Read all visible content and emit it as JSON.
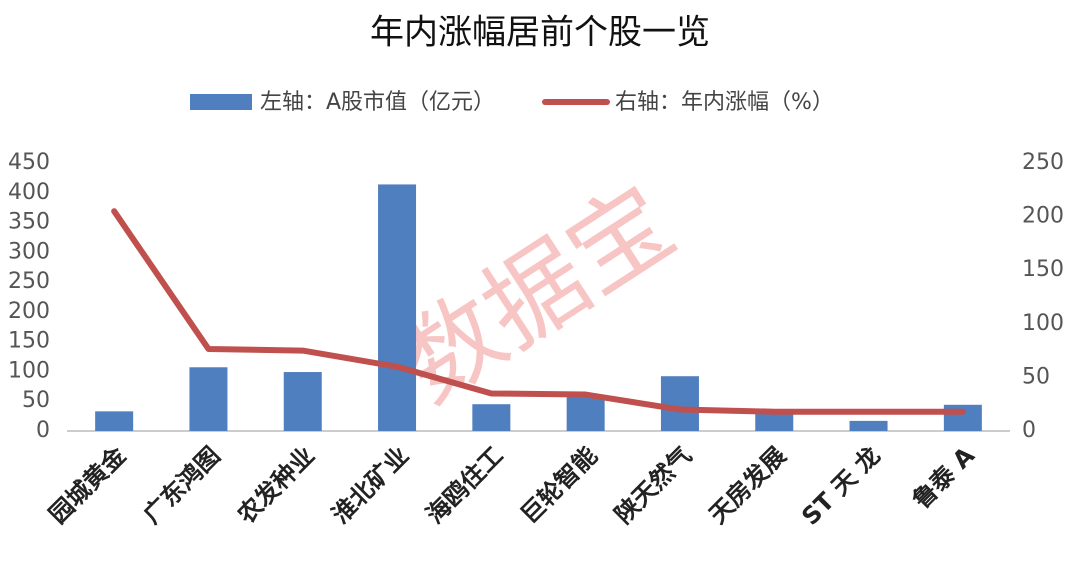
{
  "chart_data": {
    "type": "bar-line",
    "title": "年内涨幅居前个股一览",
    "watermark": "数据宝",
    "categories": [
      "园城黄金",
      "广东鸿图",
      "农发种业",
      "淮北矿业",
      "海鸥住工",
      "巨轮智能",
      "陕天然气",
      "天房发展",
      "ST 天 龙",
      "鲁泰 A"
    ],
    "series": [
      {
        "name": "左轴：A股市值（亿元）",
        "type": "bar",
        "color": "#4f7fbf",
        "values": [
          33,
          107,
          99,
          414,
          45,
          60,
          92,
          30,
          17,
          44
        ]
      },
      {
        "name": "右轴：年内涨幅（%）",
        "type": "line",
        "axis": "y2",
        "color": "#c0504d",
        "values": [
          205,
          76.5,
          75,
          60,
          35,
          34,
          20,
          18,
          18,
          18
        ]
      }
    ],
    "ylim": [
      0,
      450
    ],
    "yticks": [
      0,
      50,
      100,
      150,
      200,
      250,
      300,
      350,
      400,
      450
    ],
    "y2lim": [
      0,
      250
    ],
    "y2ticks": [
      0,
      50,
      100,
      150,
      200,
      250
    ],
    "grid": false,
    "legend": "top"
  }
}
